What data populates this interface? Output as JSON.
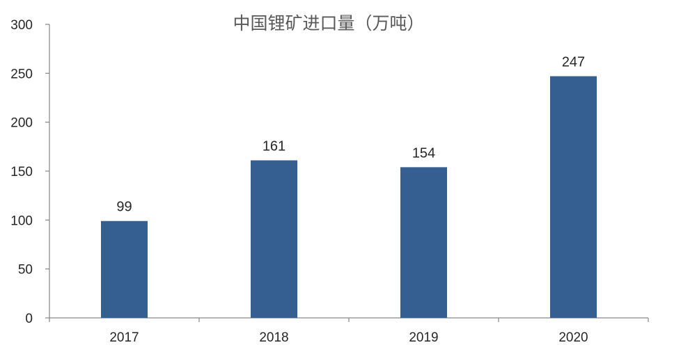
{
  "chart_data": {
    "type": "bar",
    "title": "中国锂矿进口量（万吨）",
    "xlabel": "",
    "ylabel": "",
    "categories": [
      "2017",
      "2018",
      "2019",
      "2020"
    ],
    "series": [
      {
        "values": [
          99,
          161,
          154,
          247
        ],
        "data_labels": [
          "99",
          "161",
          "154",
          "247"
        ]
      }
    ],
    "ylim": [
      0,
      300
    ],
    "y_ticks": [
      0,
      50,
      100,
      150,
      200,
      250,
      300
    ],
    "y_tick_labels": [
      "0",
      "50",
      "100",
      "150",
      "200",
      "250",
      "300"
    ],
    "grid": false,
    "legend": "none",
    "colors": {
      "bar": "#355F91",
      "axis": "#868686",
      "text": "#262626",
      "title": "#595959"
    }
  }
}
